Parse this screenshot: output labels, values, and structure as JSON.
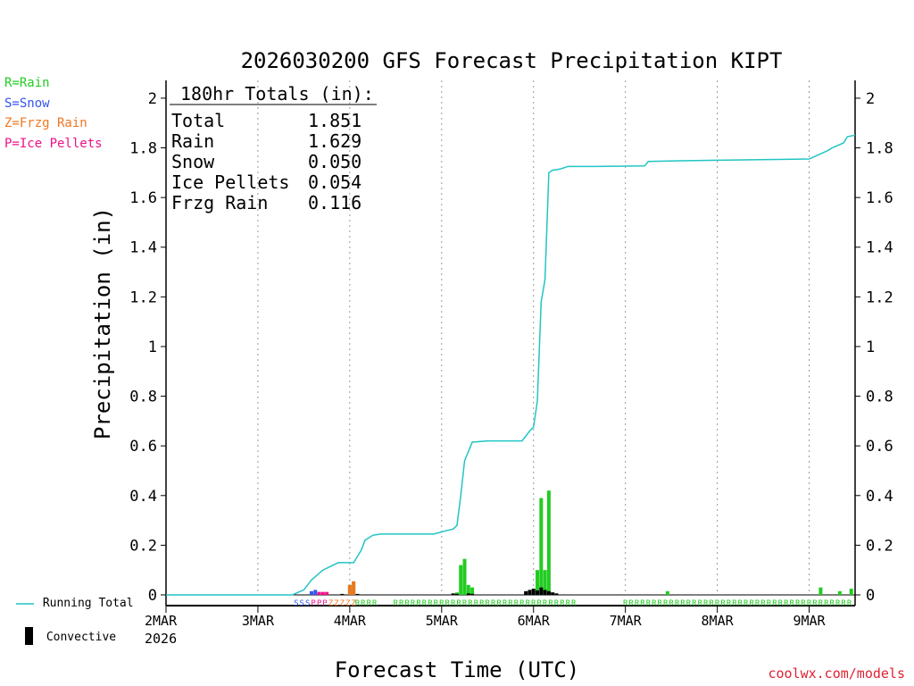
{
  "chart_data": {
    "type": "bar",
    "title": "2026030200 GFS Forecast Precipitation KIPT",
    "ylabel": "Precipitation (in)",
    "xlabel": "Forecast Time (UTC)",
    "ylim": [
      0,
      2.05
    ],
    "yticks": [
      0,
      0.2,
      0.4,
      0.6,
      0.8,
      1,
      1.2,
      1.4,
      1.6,
      1.8,
      2
    ],
    "yticklabels": [
      "0",
      "0.2",
      "0.4",
      "0.6",
      "0.8",
      "1",
      "1.2",
      "1.4",
      "1.6",
      "1.8",
      "2"
    ],
    "xlim_hours": [
      0,
      180
    ],
    "xticks_hours": [
      0,
      24,
      48,
      72,
      96,
      120,
      144,
      168
    ],
    "xticklabels": [
      "2MAR",
      "3MAR",
      "4MAR",
      "5MAR",
      "6MAR",
      "7MAR",
      "8MAR",
      "9MAR"
    ],
    "year_label": "2026",
    "grid": true,
    "totals_box": {
      "heading": "180hr Totals (in):",
      "rows": [
        {
          "label": "Total",
          "value": "1.851"
        },
        {
          "label": "Rain",
          "value": "1.629"
        },
        {
          "label": "Snow",
          "value": "0.050"
        },
        {
          "label": "Ice Pellets",
          "value": "0.054"
        },
        {
          "label": "Frzg Rain",
          "value": "0.116"
        }
      ]
    },
    "precip_type_legend": [
      {
        "code": "R",
        "label": "R=Rain",
        "color": "#22cc22"
      },
      {
        "code": "S",
        "label": "S=Snow",
        "color": "#3355ee"
      },
      {
        "code": "Z",
        "label": "Z=Frzg Rain",
        "color": "#ee7722"
      },
      {
        "code": "P",
        "label": "P=Ice Pellets",
        "color": "#ee1188"
      }
    ],
    "series": [
      {
        "name": "Running Total",
        "type": "line",
        "color": "#22c4c4",
        "x": [
          0,
          33,
          36,
          38,
          41,
          45,
          49,
          51,
          52,
          54,
          56,
          60,
          70,
          73,
          75,
          76,
          77,
          78,
          80,
          84,
          93,
          95,
          96,
          97,
          98,
          99,
          100,
          101,
          102,
          103,
          104,
          105,
          107,
          112,
          125,
          126,
          134,
          144,
          168,
          173,
          174,
          177,
          178,
          180
        ],
        "y": [
          0,
          0,
          0.02,
          0.06,
          0.1,
          0.13,
          0.13,
          0.18,
          0.22,
          0.24,
          0.245,
          0.245,
          0.245,
          0.258,
          0.265,
          0.28,
          0.4,
          0.54,
          0.615,
          0.62,
          0.62,
          0.66,
          0.675,
          0.78,
          1.18,
          1.27,
          1.7,
          1.71,
          1.712,
          1.715,
          1.72,
          1.725,
          1.725,
          1.725,
          1.727,
          1.745,
          1.748,
          1.75,
          1.755,
          1.79,
          1.8,
          1.82,
          1.845,
          1.851
        ]
      },
      {
        "name": "Rain",
        "type": "bar",
        "color": "#22cc22",
        "x": [
          48,
          49,
          76,
          77,
          78,
          79,
          80,
          97,
          98,
          99,
          100,
          101,
          131,
          171,
          176,
          179
        ],
        "values": [
          0.04,
          0.05,
          0.01,
          0.12,
          0.145,
          0.04,
          0.03,
          0.1,
          0.39,
          0.1,
          0.42,
          0.01,
          0.015,
          0.03,
          0.015,
          0.025
        ]
      },
      {
        "name": "Snow",
        "type": "bar",
        "color": "#3355ee",
        "x": [
          38,
          39
        ],
        "values": [
          0.015,
          0.02
        ]
      },
      {
        "name": "Ice Pellets",
        "type": "bar",
        "color": "#ee1188",
        "x": [
          40,
          41,
          42
        ],
        "values": [
          0.012,
          0.012,
          0.012
        ]
      },
      {
        "name": "Frzg Rain",
        "type": "bar",
        "color": "#ee7722",
        "x": [
          48,
          49
        ],
        "values": [
          0.04,
          0.055
        ]
      },
      {
        "name": "Convective",
        "type": "bar",
        "color": "#000000",
        "x": [
          46,
          50,
          75,
          76,
          79,
          80,
          94,
          95,
          96,
          97,
          98,
          99,
          100,
          101,
          102
        ],
        "values": [
          0.004,
          0.004,
          0.006,
          0.004,
          0.006,
          0.004,
          0.015,
          0.02,
          0.025,
          0.018,
          0.03,
          0.02,
          0.015,
          0.01,
          0.006
        ]
      }
    ],
    "type_strip": [
      {
        "code": "S",
        "color": "#3355ee",
        "from": 34,
        "to": 38.5
      },
      {
        "code": "P",
        "color": "#ee1188",
        "from": 38.5,
        "to": 43
      },
      {
        "code": "Z",
        "color": "#ee7722",
        "from": 43,
        "to": 50
      },
      {
        "code": "R",
        "color": "#22cc22",
        "from": 50,
        "to": 56
      },
      {
        "code": "R",
        "color": "#22cc22",
        "from": 60,
        "to": 108
      },
      {
        "code": "R",
        "color": "#22cc22",
        "from": 120,
        "to": 180
      }
    ],
    "bottom_legend": {
      "line_label": "Running Total",
      "bar_label": "Convective"
    },
    "credit": "coolwx.com/models"
  }
}
